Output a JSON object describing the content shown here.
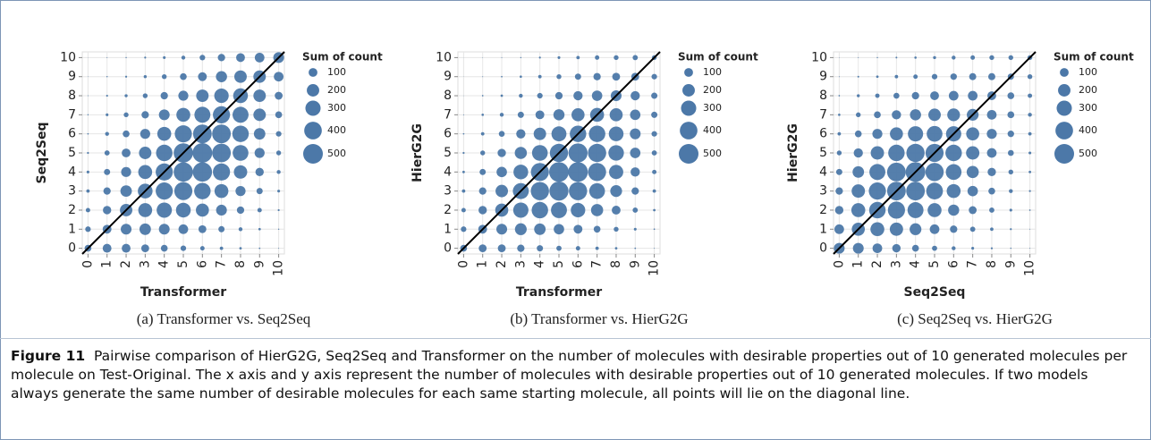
{
  "chart_data": [
    {
      "type": "bubble",
      "xlabel": "Transformer",
      "ylabel": "Seq2Seq",
      "caption": "(a) Transformer vs. Seq2Seq",
      "x": [
        0,
        1,
        2,
        3,
        4,
        5,
        6,
        7,
        8,
        9,
        10
      ],
      "y": [
        0,
        1,
        2,
        3,
        4,
        5,
        6,
        7,
        8,
        9,
        10
      ],
      "sizes": [
        [
          60,
          100,
          100,
          80,
          60,
          40,
          25,
          15,
          8,
          3,
          1
        ],
        [
          40,
          100,
          150,
          170,
          150,
          120,
          80,
          50,
          20,
          8,
          2
        ],
        [
          25,
          90,
          200,
          250,
          300,
          280,
          220,
          150,
          70,
          25,
          5
        ],
        [
          15,
          70,
          170,
          280,
          380,
          420,
          350,
          250,
          130,
          50,
          10
        ],
        [
          10,
          50,
          130,
          250,
          380,
          480,
          480,
          380,
          230,
          90,
          20
        ],
        [
          5,
          35,
          100,
          200,
          350,
          480,
          500,
          450,
          320,
          130,
          30
        ],
        [
          3,
          20,
          60,
          130,
          250,
          380,
          450,
          450,
          350,
          170,
          40
        ],
        [
          2,
          10,
          30,
          70,
          150,
          250,
          330,
          380,
          330,
          200,
          60
        ],
        [
          1,
          5,
          12,
          30,
          70,
          130,
          200,
          270,
          280,
          200,
          80
        ],
        [
          0.5,
          2,
          5,
          12,
          30,
          60,
          100,
          160,
          200,
          200,
          120
        ],
        [
          0.3,
          1,
          2,
          5,
          10,
          20,
          40,
          70,
          100,
          120,
          150
        ]
      ],
      "xlim": [
        -0.3,
        10.3
      ],
      "ylim": [
        -0.3,
        10.3
      ],
      "xticks": [
        0,
        1,
        2,
        3,
        4,
        5,
        6,
        7,
        8,
        9,
        10
      ],
      "yticks": [
        0,
        1,
        2,
        3,
        4,
        5,
        6,
        7,
        8,
        9,
        10
      ],
      "color": "#4c78a8",
      "grid": true,
      "diagonal": true,
      "legend_title": "Sum of count",
      "legend_sizes": [
        100,
        200,
        300,
        400,
        500
      ]
    },
    {
      "type": "bubble",
      "xlabel": "Transformer",
      "ylabel": "HierG2G",
      "caption": "(b) Transformer vs. HierG2G",
      "x": [
        0,
        1,
        2,
        3,
        4,
        5,
        6,
        7,
        8,
        9,
        10
      ],
      "y": [
        0,
        1,
        2,
        3,
        4,
        5,
        6,
        7,
        8,
        9,
        10
      ],
      "sizes": [
        [
          60,
          80,
          80,
          70,
          50,
          35,
          25,
          15,
          8,
          3,
          1
        ],
        [
          40,
          100,
          150,
          180,
          170,
          140,
          100,
          60,
          30,
          10,
          3
        ],
        [
          25,
          90,
          220,
          300,
          350,
          330,
          270,
          190,
          100,
          35,
          8
        ],
        [
          15,
          70,
          200,
          330,
          430,
          470,
          430,
          320,
          180,
          70,
          15
        ],
        [
          8,
          50,
          140,
          280,
          420,
          500,
          500,
          420,
          260,
          110,
          25
        ],
        [
          5,
          30,
          90,
          190,
          320,
          430,
          470,
          430,
          310,
          140,
          35
        ],
        [
          3,
          15,
          45,
          110,
          200,
          290,
          350,
          350,
          280,
          150,
          40
        ],
        [
          1,
          7,
          20,
          50,
          100,
          160,
          220,
          250,
          220,
          140,
          50
        ],
        [
          0.5,
          3,
          8,
          20,
          40,
          70,
          110,
          140,
          150,
          110,
          50
        ],
        [
          0.3,
          1,
          3,
          7,
          15,
          30,
          50,
          70,
          80,
          80,
          40
        ],
        [
          0.2,
          0.5,
          1,
          2,
          5,
          10,
          15,
          25,
          30,
          35,
          30
        ]
      ],
      "xlim": [
        -0.3,
        10.3
      ],
      "ylim": [
        -0.3,
        10.3
      ],
      "xticks": [
        0,
        1,
        2,
        3,
        4,
        5,
        6,
        7,
        8,
        9,
        10
      ],
      "yticks": [
        0,
        1,
        2,
        3,
        4,
        5,
        6,
        7,
        8,
        9,
        10
      ],
      "color": "#4c78a8",
      "grid": true,
      "diagonal": true,
      "legend_title": "Sum of count",
      "legend_sizes": [
        100,
        200,
        300,
        400,
        500
      ]
    },
    {
      "type": "bubble",
      "xlabel": "Seq2Seq",
      "ylabel": "HierG2G",
      "caption": "(c) Seq2Seq vs. HierG2G",
      "x": [
        0,
        1,
        2,
        3,
        4,
        5,
        6,
        7,
        8,
        9,
        10
      ],
      "y": [
        0,
        1,
        2,
        3,
        4,
        5,
        6,
        7,
        8,
        9,
        10
      ],
      "sizes": [
        [
          150,
          150,
          120,
          90,
          60,
          35,
          20,
          10,
          5,
          2,
          1
        ],
        [
          120,
          220,
          250,
          230,
          180,
          120,
          70,
          35,
          15,
          5,
          1
        ],
        [
          90,
          250,
          350,
          380,
          330,
          250,
          160,
          80,
          35,
          10,
          3
        ],
        [
          70,
          230,
          380,
          450,
          450,
          360,
          250,
          140,
          60,
          20,
          5
        ],
        [
          50,
          170,
          330,
          450,
          500,
          430,
          320,
          190,
          90,
          30,
          8
        ],
        [
          30,
          110,
          230,
          350,
          430,
          420,
          350,
          230,
          120,
          45,
          10
        ],
        [
          15,
          60,
          130,
          220,
          300,
          320,
          300,
          220,
          130,
          55,
          15
        ],
        [
          7,
          30,
          60,
          110,
          160,
          200,
          210,
          180,
          120,
          60,
          20
        ],
        [
          3,
          12,
          25,
          45,
          70,
          100,
          120,
          120,
          100,
          60,
          25
        ],
        [
          1,
          4,
          8,
          15,
          25,
          40,
          55,
          65,
          65,
          50,
          30
        ],
        [
          0.5,
          1,
          2,
          4,
          7,
          12,
          20,
          25,
          30,
          30,
          30
        ]
      ],
      "xlim": [
        -0.3,
        10.3
      ],
      "ylim": [
        -0.3,
        10.3
      ],
      "xticks": [
        0,
        1,
        2,
        3,
        4,
        5,
        6,
        7,
        8,
        9,
        10
      ],
      "yticks": [
        0,
        1,
        2,
        3,
        4,
        5,
        6,
        7,
        8,
        9,
        10
      ],
      "color": "#4c78a8",
      "grid": true,
      "diagonal": true,
      "legend_title": "Sum of count",
      "legend_sizes": [
        100,
        200,
        300,
        400,
        500
      ]
    }
  ],
  "figure_caption": {
    "label": "Figure 11",
    "text": "Pairwise comparison of HierG2G, Seq2Seq and Transformer on the number of molecules with desirable properties out of 10 generated molecules per molecule on Test-Original. The x axis and y axis represent the number of molecules with desirable properties out of 10 generated molecules. If two models always generate the same number of desirable molecules for each same starting molecule, all points will lie on the diagonal line."
  }
}
